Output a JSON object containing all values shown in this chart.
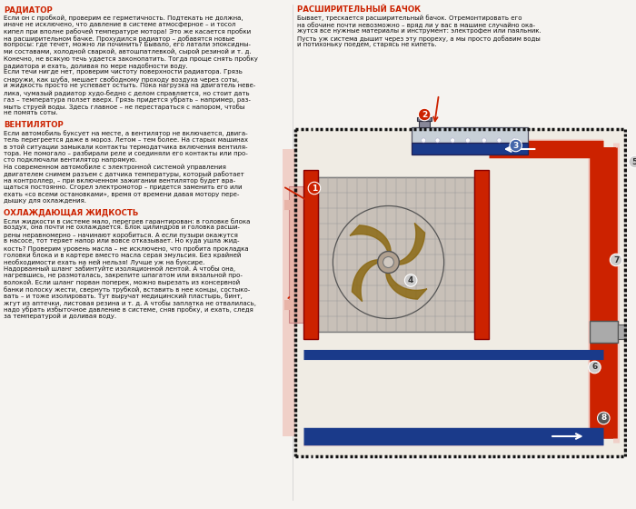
{
  "bg_color": "#f5f3f0",
  "title_color": "#cc2200",
  "text_color": "#111111",
  "heading1": "РАДИАТОР",
  "text1_lines": [
    "Если он с пробкой, проверим ее герметичность. Подтекать не должна,",
    "иначе не исключено, что давление в системе атмосферное – и тосол",
    "кипел при вполне рабочей температуре мотора! Это же касается пробки",
    "на расширительном бачке. Прохудился радиатор – добавятся новые",
    "вопросы: где течет, можно ли починить? Бывало, его латали эпоксидны-",
    "ми составами, холодной сваркой, автошпатлевкой, сырой резиной и т. д.",
    "Конечно, не всякую течь удается законопатить. Тогда проще снять пробку",
    "радиатора и ехать, доливая по мере надобности воду.",
    "Если течи нигде нет, проверим чистоту поверхности радиатора. Грязь",
    "снаружи, как шуба, мешает свободному проходу воздуха через соты,",
    "и жидкость просто не успевает остыть. Пока нагрузка на двигатель неве-",
    "лика, чумазый радиатор худо-бедно с делом справляется, но стоит дать",
    "газ – температура ползет вверх. Грязь придется убрать – например, раз-",
    "мыть струей воды. Здесь главное – не перестараться с напором, чтобы",
    "не помять соты."
  ],
  "heading2": "ВЕНТИЛЯТОР",
  "text2_lines": [
    "Если автомобиль буксует на месте, а вентилятор не включается, двига-",
    "тель перегреется даже в мороз. Летом – тем более. На старых машинах",
    "в этой ситуации замыкали контакты термодатчика включения вентиля-",
    "тора. Не помогало – разбирали реле и соединяли его контакты или про-",
    "сто подключали вентилятор напрямую.",
    "На современном автомобиле с электронной системой управления",
    "двигателем снимем разъем с датчика температуры, который работает",
    "на контроллер, – при включенном зажигании вентилятор будет вра-",
    "щаться постоянно. Сгорел электромотор – придется заменить его или",
    "ехать «со всеми остановками», время от времени давая мотору пере-",
    "дышку для охлаждения."
  ],
  "heading3": "ОХЛАЖДАЮЩАЯ ЖИДКОСТЬ",
  "text3_lines": [
    "Если жидкости в системе мало, перегрев гарантирован: в головке блока",
    "воздух, она почти не охлаждается. Блок цилиндров и головка расши-",
    "рены неравномерно – начинают коробиться. А если пузыри окажутся",
    "в насосе, тот теряет напор или вовсе отказывает. Но куда ушла жид-",
    "кость? Проверим уровень масла – не исключено, что пробита прокладка",
    "головки блока и в картере вместо масла серая эмульсия. Без крайней",
    "необходимости ехать на ней нельзя! Лучше уж на буксире.",
    "Надорванный шланг забинтуйте изоляционной лентой. А чтобы она,",
    "нагревшись, не размоталась, закрепите шпагатом или вязальной про-",
    "волокой. Если шланг порван поперек, можно вырезать из консервной",
    "банки полоску жести, свернуть трубкой, вставить в нее концы, состыко-",
    "вать – и тоже изолировать. Тут выручат медицинский пластырь, бинт,",
    "жгут из аптечки, листовая резина и т. д. А чтобы заплатка не отвалилась,",
    "надо убрать избыточное давление в системе, сняв пробку, и ехать, следя",
    "за температурой и доливая воду."
  ],
  "heading4": "РАСШИРИТЕЛЬНЫЙ БАЧОК",
  "text4_lines": [
    "Бывает, трескается расширительный бачок. Отремонтировать его",
    "на обочине почти невозможно – вряд ли у вас в машине случайно ока-",
    "жутся все нужные материалы и инструмент: электрофен или паяльник.",
    "Пусть уж система дышит через эту прореху, а мы просто добавим воды",
    "и потихоньку поедем, старясь не кипеть."
  ],
  "red": "#cc2200",
  "blue": "#1a3a8a",
  "pink": "#e8b4a8",
  "light_pink": "#f0d0c8",
  "dark": "#222222",
  "gray": "#888888",
  "light_gray": "#cccccc",
  "white": "#ffffff",
  "grid_color": "#aaaaaa",
  "diagram_bg": "#ede8e0"
}
